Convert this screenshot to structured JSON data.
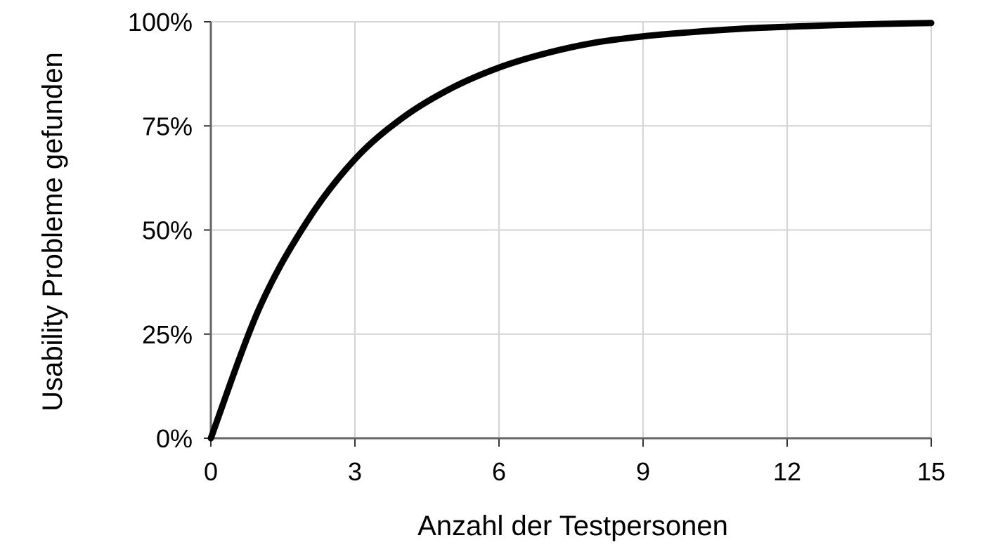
{
  "chart_data": {
    "type": "line",
    "xlabel": "Anzahl der Testpersonen",
    "ylabel": "Usability Probleme gefunden",
    "xlim": [
      0,
      15
    ],
    "ylim": [
      0,
      100
    ],
    "x_ticks": [
      "0",
      "3",
      "6",
      "9",
      "12",
      "15"
    ],
    "x_tick_values": [
      0,
      3,
      6,
      9,
      12,
      15
    ],
    "y_ticks": [
      "0%",
      "25%",
      "50%",
      "75%",
      "100%"
    ],
    "y_tick_values": [
      0,
      25,
      50,
      75,
      100
    ],
    "grid": true,
    "series": [
      {
        "color": "#000000",
        "x": [
          0,
          1,
          2,
          3,
          4,
          5,
          6,
          7,
          8,
          9,
          10,
          11,
          12,
          13,
          14,
          15
        ],
        "y": [
          0,
          31,
          52,
          67,
          77,
          84,
          89,
          92.5,
          95,
          96.5,
          97.5,
          98.3,
          98.8,
          99.2,
          99.5,
          99.7
        ]
      }
    ]
  }
}
